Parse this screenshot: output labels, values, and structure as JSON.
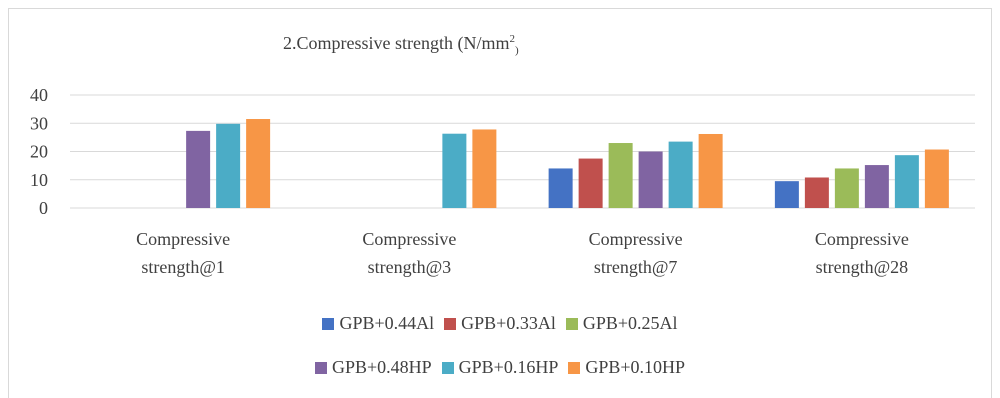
{
  "chart_data": {
    "type": "bar",
    "title": "2.Compressive strength (N/mm",
    "title_sup": "2",
    "title_sub": ")",
    "categories": [
      [
        "Compressive",
        "strength@1"
      ],
      [
        "Compressive",
        "strength@3"
      ],
      [
        "Compressive",
        "strength@7"
      ],
      [
        "Compressive",
        "strength@28"
      ]
    ],
    "yticks": [
      0,
      10,
      20,
      30,
      40
    ],
    "ylim": [
      0,
      40
    ],
    "grid": true,
    "legend_position": "bottom",
    "series": [
      {
        "name": "GPB+0.44Al",
        "color": "#4472c4",
        "values": [
          0,
          0,
          14,
          9.5
        ]
      },
      {
        "name": "GPB+0.33Al",
        "color": "#c0504d",
        "values": [
          0,
          0,
          17.5,
          10.8
        ]
      },
      {
        "name": "GPB+0.25Al",
        "color": "#9bbb59",
        "values": [
          0,
          0,
          23,
          14
        ]
      },
      {
        "name": "GPB+0.48HP",
        "color": "#8064a2",
        "values": [
          27.3,
          0,
          20,
          15.2
        ]
      },
      {
        "name": "GPB+0.16HP",
        "color": "#4bacc6",
        "values": [
          29.8,
          26.3,
          23.5,
          18.7
        ]
      },
      {
        "name": "GPB+0.10HP",
        "color": "#f79646",
        "values": [
          31.5,
          27.8,
          26.2,
          20.7
        ]
      }
    ]
  }
}
